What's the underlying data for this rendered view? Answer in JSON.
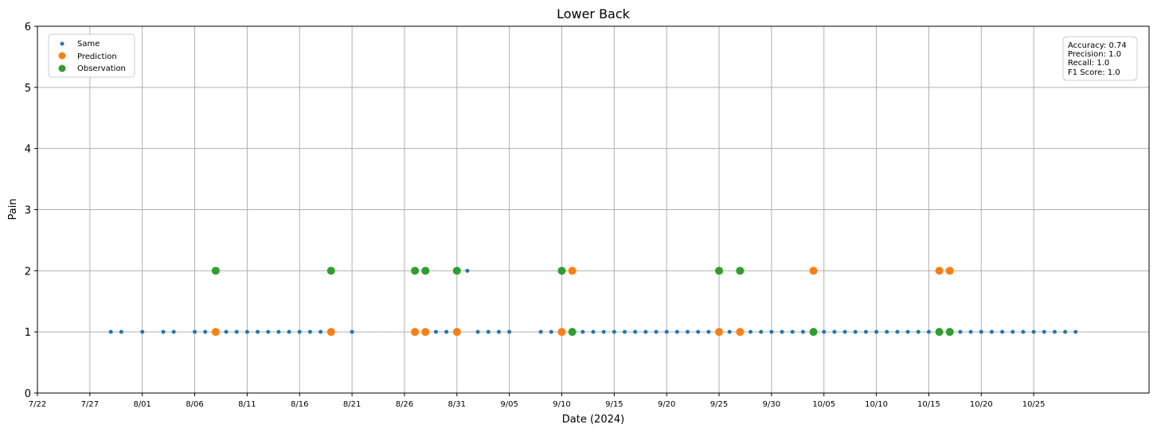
{
  "chart_data": {
    "type": "scatter",
    "title": "Lower Back",
    "xlabel": "Date (2024)",
    "ylabel": "Pain",
    "xlim": [
      "2024-07-22",
      "2024-11-05"
    ],
    "ylim": [
      0,
      6
    ],
    "grid": true,
    "y_ticks": [
      0,
      1,
      2,
      3,
      4,
      5,
      6
    ],
    "x_ticks": [
      {
        "date": "2024-07-22",
        "label": "7/22"
      },
      {
        "date": "2024-07-27",
        "label": "7/27"
      },
      {
        "date": "2024-08-01",
        "label": "8/01"
      },
      {
        "date": "2024-08-06",
        "label": "8/06"
      },
      {
        "date": "2024-08-11",
        "label": "8/11"
      },
      {
        "date": "2024-08-16",
        "label": "8/16"
      },
      {
        "date": "2024-08-21",
        "label": "8/21"
      },
      {
        "date": "2024-08-26",
        "label": "8/26"
      },
      {
        "date": "2024-08-31",
        "label": "8/31"
      },
      {
        "date": "2024-09-05",
        "label": "9/05"
      },
      {
        "date": "2024-09-10",
        "label": "9/10"
      },
      {
        "date": "2024-09-15",
        "label": "9/15"
      },
      {
        "date": "2024-09-20",
        "label": "9/20"
      },
      {
        "date": "2024-09-25",
        "label": "9/25"
      },
      {
        "date": "2024-09-30",
        "label": "9/30"
      },
      {
        "date": "2024-10-05",
        "label": "10/05"
      },
      {
        "date": "2024-10-10",
        "label": "10/10"
      },
      {
        "date": "2024-10-15",
        "label": "10/15"
      },
      {
        "date": "2024-10-20",
        "label": "10/20"
      },
      {
        "date": "2024-10-25",
        "label": "10/25"
      }
    ],
    "legend_position": "top-left",
    "series": [
      {
        "name": "Same",
        "color": "#1f77b4",
        "marker": "small",
        "x": [
          "2024-07-29",
          "2024-07-30",
          "2024-08-01",
          "2024-08-03",
          "2024-08-04",
          "2024-08-06",
          "2024-08-07",
          "2024-08-09",
          "2024-08-10",
          "2024-08-11",
          "2024-08-12",
          "2024-08-13",
          "2024-08-14",
          "2024-08-15",
          "2024-08-16",
          "2024-08-17",
          "2024-08-18",
          "2024-08-21",
          "2024-08-29",
          "2024-08-30",
          "2024-09-01",
          "2024-09-02",
          "2024-09-03",
          "2024-09-04",
          "2024-09-05",
          "2024-09-08",
          "2024-09-09",
          "2024-09-12",
          "2024-09-13",
          "2024-09-14",
          "2024-09-15",
          "2024-09-16",
          "2024-09-17",
          "2024-09-18",
          "2024-09-19",
          "2024-09-20",
          "2024-09-21",
          "2024-09-22",
          "2024-09-23",
          "2024-09-24",
          "2024-09-26",
          "2024-09-28",
          "2024-09-29",
          "2024-09-30",
          "2024-10-01",
          "2024-10-02",
          "2024-10-03",
          "2024-10-05",
          "2024-10-06",
          "2024-10-07",
          "2024-10-08",
          "2024-10-09",
          "2024-10-10",
          "2024-10-11",
          "2024-10-12",
          "2024-10-13",
          "2024-10-14",
          "2024-10-15",
          "2024-10-18",
          "2024-10-19",
          "2024-10-20",
          "2024-10-21",
          "2024-10-22",
          "2024-10-23",
          "2024-10-24",
          "2024-10-25",
          "2024-10-26",
          "2024-10-27",
          "2024-10-28",
          "2024-10-29"
        ],
        "y": [
          1,
          1,
          1,
          1,
          1,
          1,
          1,
          1,
          1,
          1,
          1,
          1,
          1,
          1,
          1,
          1,
          1,
          1,
          1,
          1,
          2,
          1,
          1,
          1,
          1,
          1,
          1,
          1,
          1,
          1,
          1,
          1,
          1,
          1,
          1,
          1,
          1,
          1,
          1,
          1,
          1,
          1,
          1,
          1,
          1,
          1,
          1,
          1,
          1,
          1,
          1,
          1,
          1,
          1,
          1,
          1,
          1,
          1,
          1,
          1,
          1,
          1,
          1,
          1,
          1,
          1,
          1,
          1,
          1,
          1
        ]
      },
      {
        "name": "Prediction",
        "color": "#ff7f0e",
        "marker": "large",
        "x": [
          "2024-08-08",
          "2024-08-19",
          "2024-08-27",
          "2024-08-28",
          "2024-08-31",
          "2024-09-10",
          "2024-09-11",
          "2024-09-25",
          "2024-09-27",
          "2024-10-04",
          "2024-10-16",
          "2024-10-17"
        ],
        "y": [
          1,
          1,
          1,
          1,
          1,
          1,
          2,
          1,
          1,
          2,
          2,
          2
        ]
      },
      {
        "name": "Observation",
        "color": "#2ca02c",
        "marker": "large",
        "x": [
          "2024-08-08",
          "2024-08-19",
          "2024-08-27",
          "2024-08-28",
          "2024-08-31",
          "2024-09-10",
          "2024-09-11",
          "2024-09-25",
          "2024-09-27",
          "2024-10-04",
          "2024-10-16",
          "2024-10-17"
        ],
        "y": [
          2,
          2,
          2,
          2,
          2,
          2,
          1,
          2,
          2,
          1,
          1,
          1
        ]
      }
    ],
    "metrics": [
      "Accuracy: 0.74",
      "Precision: 1.0",
      "Recall: 1.0",
      "F1 Score: 1.0"
    ]
  }
}
